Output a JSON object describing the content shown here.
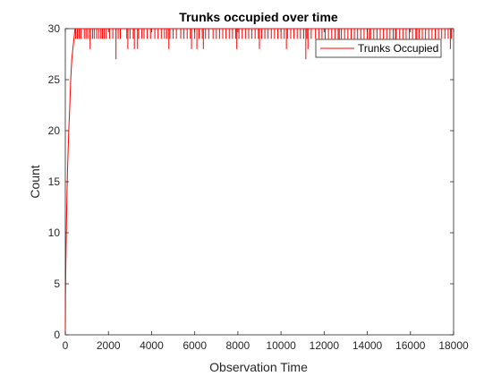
{
  "chart_data": {
    "type": "line",
    "title": "Trunks occupied over time",
    "xlabel": "Observation Time",
    "ylabel": "Count",
    "xlim": [
      0,
      18000
    ],
    "ylim": [
      0,
      30
    ],
    "xticks": [
      0,
      2000,
      4000,
      6000,
      8000,
      10000,
      12000,
      14000,
      16000,
      18000
    ],
    "yticks": [
      0,
      5,
      10,
      15,
      20,
      25,
      30
    ],
    "grid": false,
    "legend_position": "top-right",
    "series": [
      {
        "name": "Trunks Occupied",
        "color": "#ff0000",
        "ramp": {
          "x": [
            0,
            10,
            20,
            40,
            60,
            80,
            100,
            130,
            160,
            200,
            250,
            300,
            350,
            400,
            450
          ],
          "y": [
            0,
            4,
            6,
            9,
            12,
            14,
            16,
            18,
            20,
            22,
            25,
            27,
            28,
            29,
            30
          ]
        },
        "plateau": {
          "x_start": 450,
          "x_end": 18000,
          "level": 30,
          "dips_to_29": [
            480,
            560,
            640,
            720,
            880,
            960,
            1040,
            1150,
            1260,
            1340,
            1450,
            1540,
            1650,
            1720,
            1800,
            1900,
            2050,
            2200,
            2350,
            2450,
            2550,
            2850,
            3000,
            3150,
            3400,
            3550,
            3650,
            3800,
            3950,
            4150,
            4300,
            4450,
            4600,
            4700,
            4850,
            5000,
            5150,
            5350,
            5500,
            5650,
            5800,
            6000,
            6200,
            6350,
            6500,
            6650,
            6850,
            7000,
            7150,
            7300,
            7450,
            7600,
            7750,
            7900,
            8050,
            8200,
            8350,
            8500,
            8650,
            8800,
            8950,
            9100,
            9250,
            9400,
            9550,
            9700,
            9850,
            10000,
            10150,
            10300,
            10450,
            10600,
            10750,
            10900,
            11050,
            11200,
            11400,
            11600,
            11750,
            11900,
            12050,
            12200,
            12350,
            12500,
            12650,
            12800,
            12950,
            13100,
            13250,
            13400,
            13550,
            13700,
            13850,
            14000,
            14150,
            14300,
            14450,
            14600,
            14750,
            14900,
            15050,
            15200,
            15350,
            15500,
            15650,
            15800,
            15950,
            16100,
            16250,
            16400,
            16550,
            16700,
            16850,
            17000,
            17150,
            17300,
            17450,
            17600,
            17750,
            17900
          ],
          "dips_to_28": [
            1150,
            2900,
            3200,
            3350,
            4800,
            5850,
            6100,
            6400,
            7950,
            9000,
            10250,
            11250,
            12700,
            14100,
            15300,
            16300,
            17850
          ],
          "dips_to_27": [
            2350,
            11150
          ]
        }
      }
    ]
  }
}
